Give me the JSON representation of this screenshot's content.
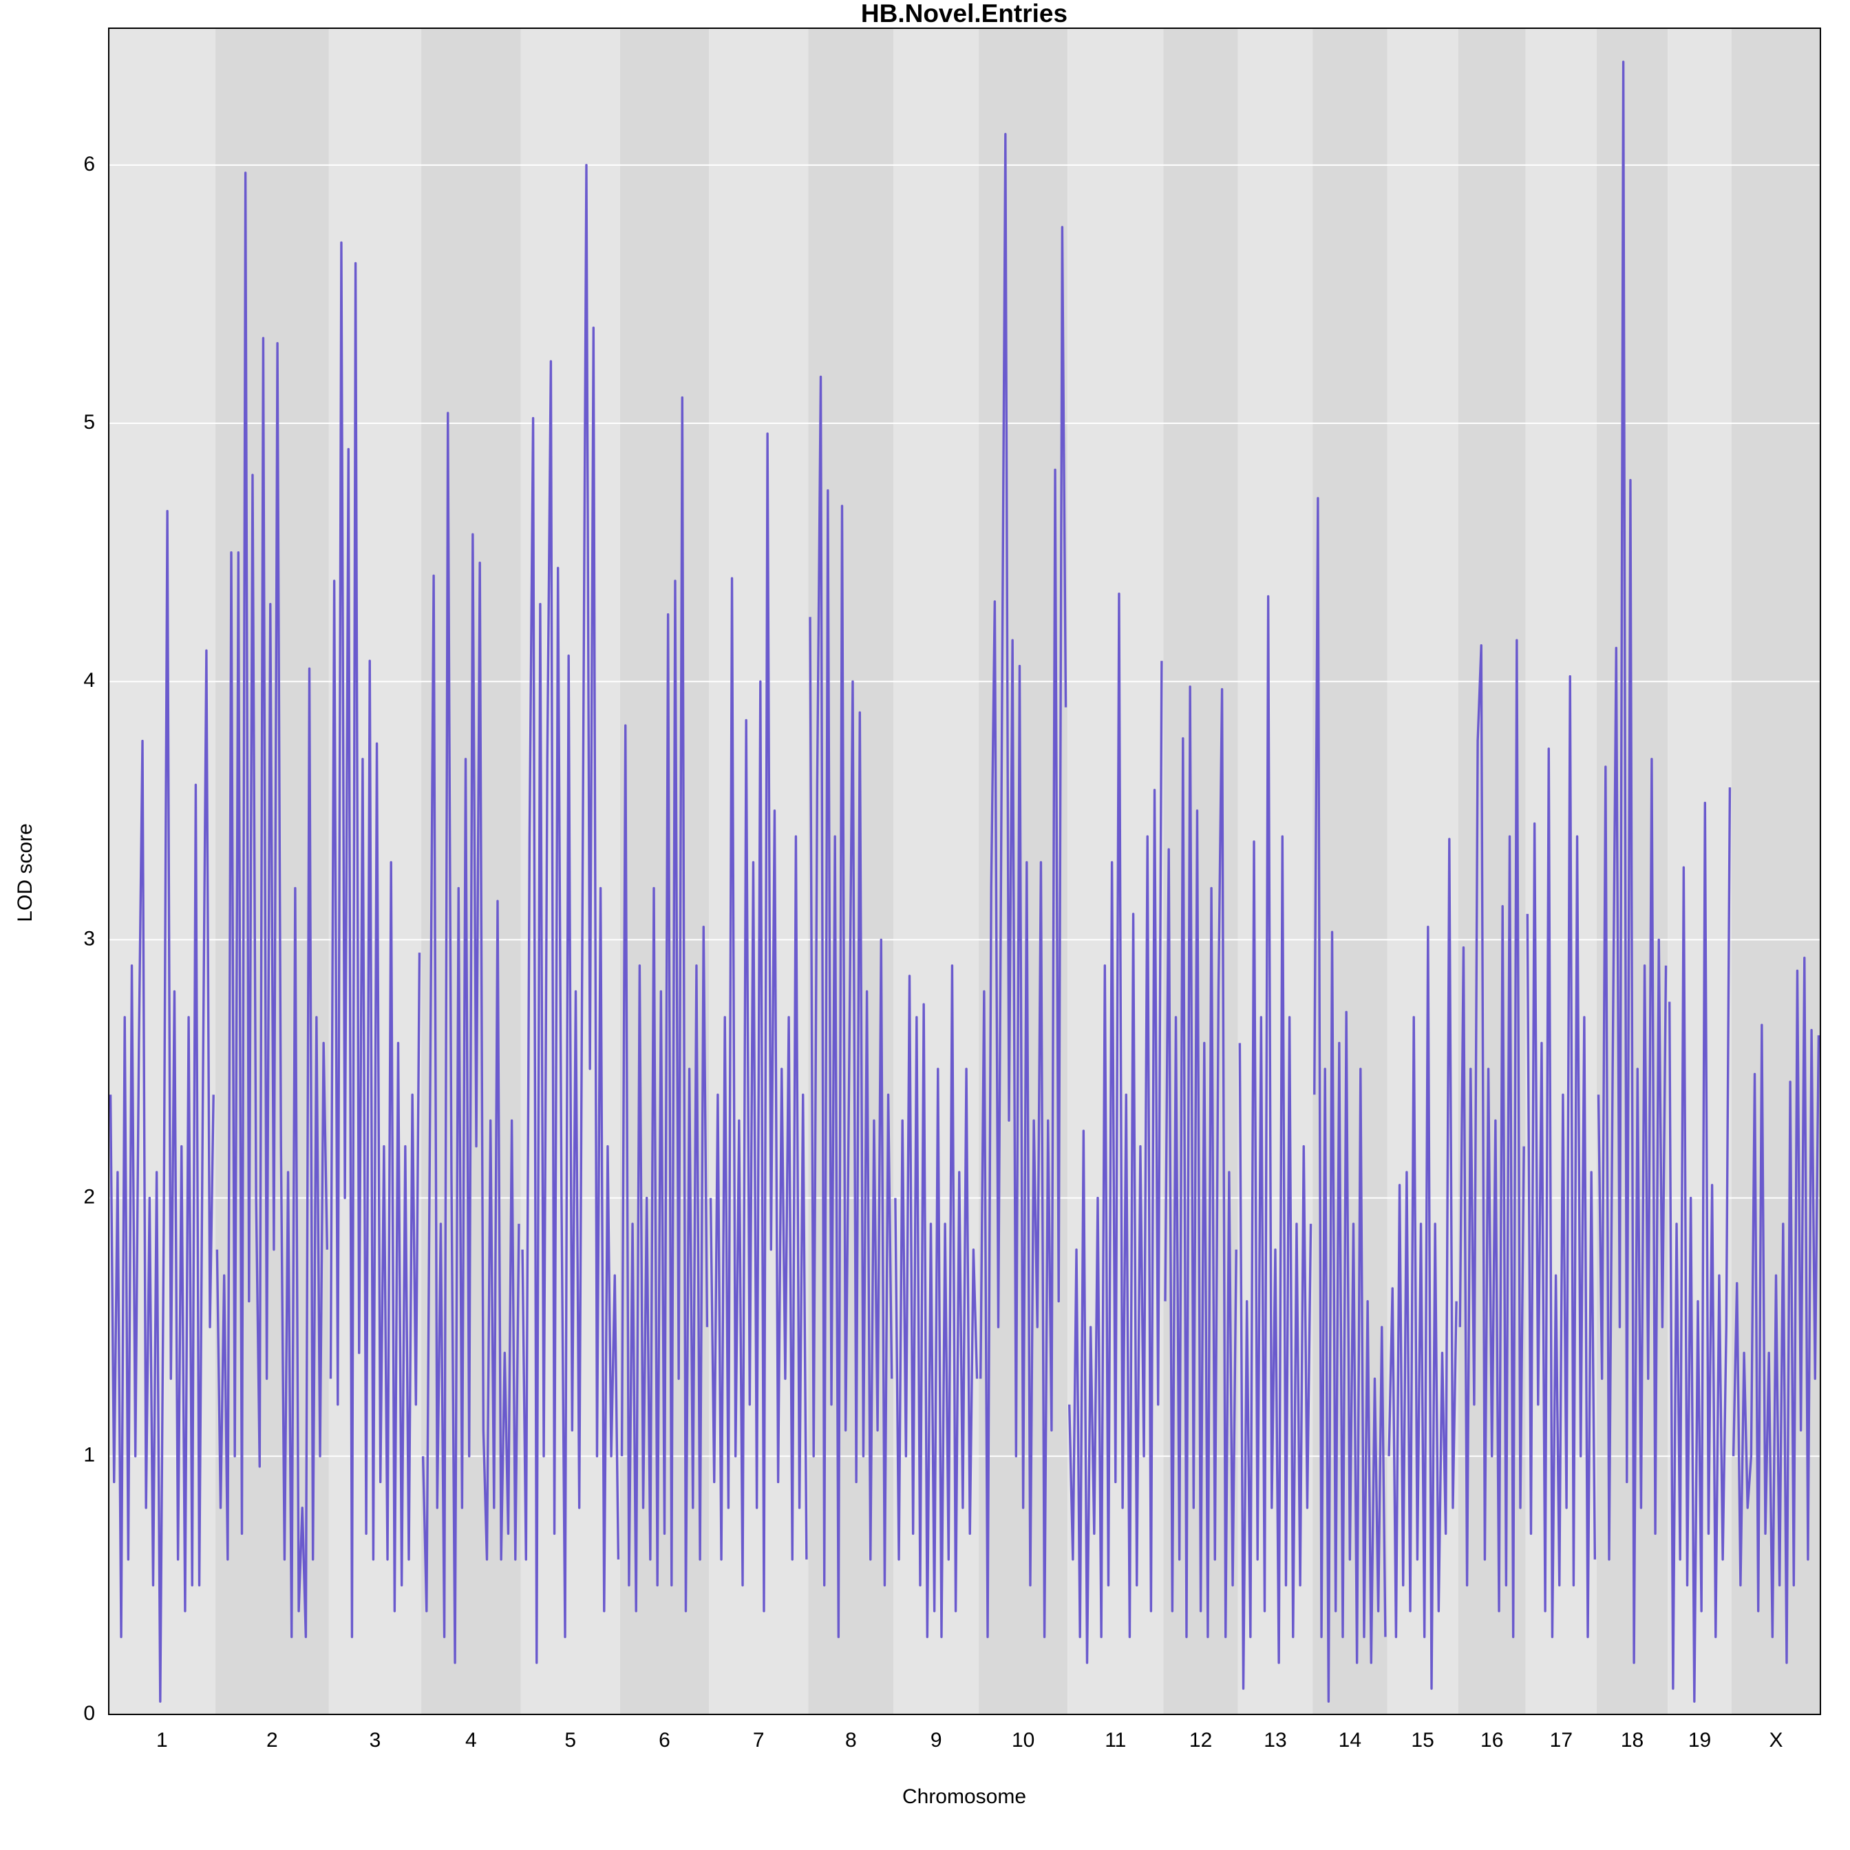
{
  "chart_data": {
    "type": "line",
    "title": "HB.Novel.Entries",
    "xlabel": "Chromosome",
    "ylabel": "LOD score",
    "color": "#6a5acd",
    "ylim": [
      0,
      6.53
    ],
    "yticks": [
      0,
      1,
      2,
      3,
      4,
      5,
      6
    ],
    "grid": true,
    "chromosomes": [
      {
        "name": "1",
        "values": [
          2.4,
          0.9,
          2.1,
          0.3,
          2.7,
          0.6,
          2.9,
          1.0,
          2.6,
          3.77,
          0.8,
          2.0,
          0.5,
          2.1,
          0.05,
          1.9,
          4.66,
          1.3,
          2.8,
          0.6,
          2.2,
          0.4,
          2.7,
          0.5,
          3.6,
          0.5,
          2.4,
          4.12,
          1.5,
          2.4
        ]
      },
      {
        "name": "2",
        "values": [
          1.8,
          0.8,
          1.7,
          0.6,
          4.5,
          1.0,
          4.5,
          0.7,
          5.97,
          1.6,
          4.8,
          2.0,
          0.96,
          5.33,
          1.3,
          4.3,
          1.8,
          5.31,
          2.2,
          0.6,
          2.1,
          0.3,
          3.2,
          0.4,
          0.8,
          0.3,
          4.05,
          0.6,
          2.7,
          1.0,
          2.6,
          1.8
        ]
      },
      {
        "name": "3",
        "values": [
          1.3,
          4.39,
          1.2,
          5.7,
          2.0,
          4.9,
          0.3,
          5.62,
          1.4,
          3.7,
          0.7,
          4.08,
          0.6,
          3.76,
          0.9,
          2.2,
          0.6,
          3.3,
          0.4,
          2.6,
          0.5,
          2.2,
          0.6,
          2.4,
          1.2,
          2.95
        ]
      },
      {
        "name": "4",
        "values": [
          1.0,
          0.4,
          2.4,
          4.41,
          0.8,
          1.9,
          0.3,
          5.04,
          2.1,
          0.2,
          3.2,
          0.8,
          3.7,
          1.0,
          4.57,
          2.2,
          4.46,
          1.1,
          0.6,
          2.3,
          0.8,
          3.15,
          0.6,
          1.4,
          0.7,
          2.3,
          0.6,
          1.9
        ]
      },
      {
        "name": "5",
        "values": [
          1.8,
          0.6,
          3.4,
          5.02,
          0.2,
          4.3,
          1.0,
          3.7,
          5.24,
          0.7,
          4.44,
          2.0,
          0.3,
          4.1,
          1.1,
          2.8,
          0.8,
          3.4,
          6.0,
          2.5,
          5.37,
          1.0,
          3.2,
          0.4,
          2.2,
          1.0,
          1.7,
          0.6
        ]
      },
      {
        "name": "6",
        "values": [
          1.0,
          3.83,
          0.5,
          1.9,
          0.4,
          2.9,
          0.8,
          2.0,
          0.6,
          3.2,
          0.5,
          2.8,
          0.7,
          4.26,
          0.5,
          4.39,
          1.3,
          5.1,
          0.4,
          2.5,
          0.8,
          2.9,
          0.6,
          3.05,
          1.5
        ]
      },
      {
        "name": "7",
        "values": [
          2.0,
          0.9,
          2.4,
          0.6,
          2.7,
          0.8,
          4.4,
          1.0,
          2.3,
          0.5,
          3.85,
          1.2,
          3.3,
          0.8,
          4.0,
          0.4,
          4.96,
          1.8,
          3.5,
          0.9,
          2.5,
          1.3,
          2.7,
          0.6,
          3.4,
          0.8,
          2.4,
          0.6
        ]
      },
      {
        "name": "8",
        "values": [
          4.25,
          1.0,
          3.6,
          5.18,
          0.5,
          4.74,
          1.2,
          3.4,
          0.3,
          4.68,
          1.1,
          2.5,
          4.0,
          0.9,
          3.88,
          1.0,
          2.8,
          0.6,
          2.3,
          1.1,
          3.0,
          0.5,
          2.4,
          1.3
        ]
      },
      {
        "name": "9",
        "values": [
          2.0,
          0.6,
          2.3,
          1.0,
          2.86,
          0.7,
          2.7,
          0.5,
          2.75,
          0.3,
          1.9,
          0.4,
          2.5,
          0.3,
          1.9,
          0.6,
          2.9,
          0.4,
          2.1,
          0.8,
          2.5,
          0.7,
          1.8,
          1.3
        ]
      },
      {
        "name": "10",
        "values": [
          1.3,
          2.8,
          0.3,
          3.2,
          4.31,
          1.5,
          3.8,
          6.12,
          2.3,
          4.16,
          1.0,
          4.06,
          0.8,
          3.3,
          0.5,
          2.3,
          1.5,
          3.3,
          0.3,
          2.3,
          1.1,
          4.82,
          1.6,
          5.76,
          3.9
        ]
      },
      {
        "name": "11",
        "values": [
          1.2,
          0.6,
          1.8,
          0.3,
          2.26,
          0.2,
          1.5,
          0.7,
          2.0,
          0.3,
          2.9,
          0.5,
          3.3,
          0.9,
          4.34,
          0.8,
          2.4,
          0.3,
          3.1,
          0.5,
          2.2,
          1.0,
          3.4,
          0.4,
          3.58,
          1.2,
          4.08
        ]
      },
      {
        "name": "12",
        "values": [
          1.6,
          3.35,
          0.4,
          2.7,
          0.6,
          3.78,
          0.3,
          3.98,
          0.8,
          3.5,
          0.4,
          2.6,
          0.3,
          3.2,
          0.6,
          2.8,
          3.97,
          0.3,
          2.1,
          0.5,
          1.8
        ]
      },
      {
        "name": "13",
        "values": [
          2.6,
          0.1,
          1.6,
          0.3,
          3.38,
          0.6,
          2.7,
          0.4,
          4.33,
          0.8,
          1.8,
          0.2,
          3.4,
          0.5,
          2.7,
          0.3,
          1.9,
          0.5,
          2.2,
          0.8,
          1.9
        ]
      },
      {
        "name": "14",
        "values": [
          2.4,
          4.71,
          0.3,
          2.5,
          0.05,
          3.03,
          0.4,
          2.6,
          0.3,
          2.72,
          0.6,
          1.9,
          0.2,
          2.5,
          0.3,
          1.6,
          0.2,
          1.3,
          0.4,
          1.5,
          0.3
        ]
      },
      {
        "name": "15",
        "values": [
          1.0,
          1.65,
          0.3,
          2.05,
          0.5,
          2.1,
          0.4,
          2.7,
          0.6,
          1.9,
          0.3,
          3.05,
          0.1,
          1.9,
          0.4,
          1.4,
          0.7,
          3.39,
          0.8,
          1.6
        ]
      },
      {
        "name": "16",
        "values": [
          1.5,
          2.97,
          0.5,
          2.5,
          1.2,
          3.77,
          4.14,
          0.6,
          2.5,
          1.0,
          2.3,
          0.4,
          3.13,
          0.5,
          3.4,
          0.3,
          4.16,
          0.8,
          2.2
        ]
      },
      {
        "name": "17",
        "values": [
          3.1,
          0.7,
          3.45,
          1.2,
          2.6,
          0.4,
          3.74,
          0.3,
          1.7,
          0.5,
          2.4,
          0.8,
          4.02,
          0.5,
          3.4,
          1.0,
          2.7,
          0.3,
          2.1,
          0.6
        ]
      },
      {
        "name": "18",
        "values": [
          2.4,
          1.3,
          3.67,
          0.6,
          2.5,
          4.13,
          1.5,
          6.4,
          0.9,
          4.78,
          0.2,
          2.5,
          0.8,
          2.9,
          1.3,
          3.7,
          0.7,
          3.0,
          1.5,
          2.9
        ]
      },
      {
        "name": "19",
        "values": [
          2.76,
          0.1,
          1.9,
          0.6,
          3.28,
          0.5,
          2.0,
          0.05,
          1.6,
          0.4,
          3.53,
          0.7,
          2.05,
          0.3,
          1.7,
          0.6,
          1.5,
          3.59
        ]
      },
      {
        "name": "X",
        "values": [
          1.0,
          1.67,
          0.5,
          1.4,
          0.8,
          1.0,
          2.48,
          0.4,
          2.67,
          0.7,
          1.4,
          0.3,
          1.7,
          0.5,
          1.9,
          0.2,
          2.45,
          0.5,
          2.88,
          1.1,
          2.93,
          0.6,
          2.65,
          1.3,
          2.63
        ]
      }
    ]
  }
}
